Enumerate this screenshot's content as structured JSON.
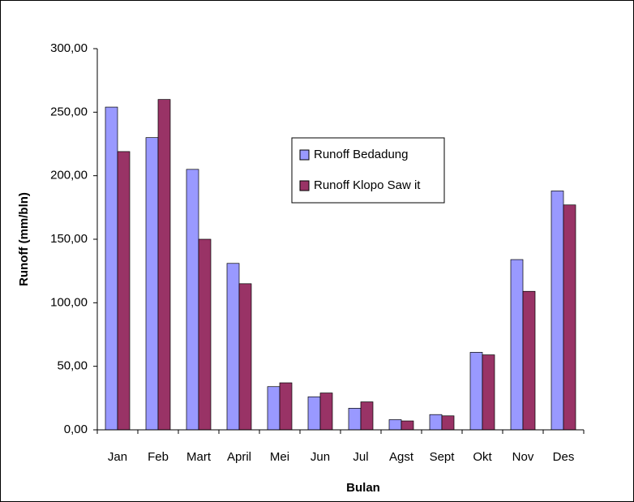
{
  "chart_data": {
    "type": "bar",
    "categories": [
      "Jan",
      "Feb",
      "Mart",
      "April",
      "Mei",
      "Jun",
      "Jul",
      "Agst",
      "Sept",
      "Okt",
      "Nov",
      "Des"
    ],
    "series": [
      {
        "name": "Runoff Bedadung",
        "color": "#9999ff",
        "values": [
          254,
          230,
          205,
          131,
          34,
          26,
          17,
          8,
          12,
          61,
          134,
          188
        ]
      },
      {
        "name": "Runoff Klopo Saw it",
        "color": "#993366",
        "values": [
          219,
          260,
          150,
          115,
          37,
          29,
          22,
          7,
          11,
          59,
          109,
          177
        ]
      }
    ],
    "ylim": [
      0,
      300
    ],
    "yticks": [
      {
        "value": 0,
        "label": "0,00"
      },
      {
        "value": 50,
        "label": "50,00"
      },
      {
        "value": 100,
        "label": "100,00"
      },
      {
        "value": 150,
        "label": "150,00"
      },
      {
        "value": 200,
        "label": "200,00"
      },
      {
        "value": 250,
        "label": "250,00"
      },
      {
        "value": 300,
        "label": "300,00"
      }
    ],
    "y_label": "Runoff (mm/bln)",
    "x_label": "Bulan"
  }
}
